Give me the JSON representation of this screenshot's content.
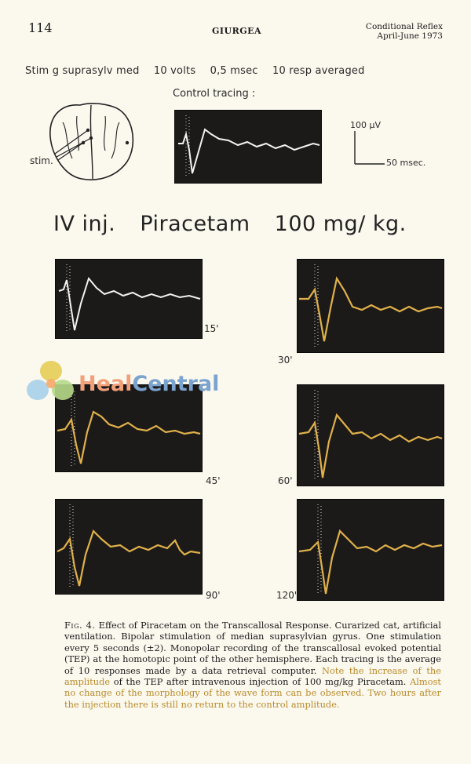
{
  "header": {
    "page_number": "114",
    "author": "GIURGEA",
    "journal_line1": "Conditional Reflex",
    "journal_line2": "April-June 1973"
  },
  "stim_info": {
    "site": "Stim g suprasylv med",
    "voltage": "10 volts",
    "duration": "0,5 msec",
    "averaging": "10 resp averaged"
  },
  "control": {
    "label": "Control tracing :"
  },
  "brain": {
    "stim_label": "stim."
  },
  "scale_bar": {
    "vertical": "100 µV",
    "horizontal": "50 msec."
  },
  "injection_title": {
    "part1": "IV inj.",
    "part2": "Piracetam",
    "part3": "100 mg/ kg."
  },
  "tracings": [
    {
      "time": "15'",
      "color": "#f2f2f2"
    },
    {
      "time": "30'",
      "color": "#e0b14a"
    },
    {
      "time": "45'",
      "color": "#e0b14a"
    },
    {
      "time": "60'",
      "color": "#e0b14a"
    },
    {
      "time": "90'",
      "color": "#e0b14a"
    },
    {
      "time": "120'",
      "color": "#e0b14a"
    }
  ],
  "watermark": {
    "heal": "Heal",
    "central": "Central"
  },
  "caption": {
    "fig_label": "Fig. 4.",
    "text_main": "Effect of Piracetam on the Transcallosal Response. Curarized cat, artificial ventilation. Bipolar stimulation of median suprasylvian gyrus. One stimulation every 5 seconds (±2). Monopolar recording of the transcallosal evoked potential (TEP) at the homotopic point of the other hemisphere. Each tracing is the average of 10 responses made by a data retrieval computer.",
    "text_hl1": "Note the increase of the amplitude",
    "text_mid": "of the TEP after intravenous injection of 100 mg/kg Piracetam.",
    "text_hl2": "Almost no change of the morphology of the wave form can be observed. Two hours after the injection there is still no return to the control amplitude."
  },
  "colors": {
    "background": "#fbf8ee",
    "panel": "#1c1a19",
    "control_trace": "#f2f2f2",
    "drug_trace": "#e0b14a",
    "caption_highlight": "#b98b2a"
  }
}
